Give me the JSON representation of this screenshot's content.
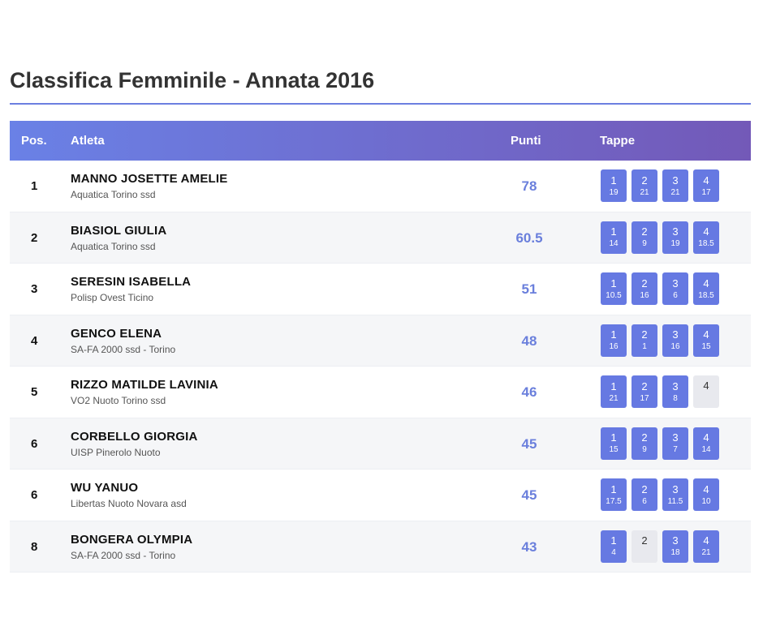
{
  "title": "Classifica Femminile - Annata 2016",
  "headers": {
    "pos": "Pos.",
    "athlete": "Atleta",
    "points": "Punti",
    "stages": "Tappe"
  },
  "rows": [
    {
      "pos": "1",
      "name": "MANNO JOSETTE AMELIE",
      "club": "Aquatica Torino ssd",
      "points": "78",
      "stages": [
        {
          "n": "1",
          "p": "19"
        },
        {
          "n": "2",
          "p": "21"
        },
        {
          "n": "3",
          "p": "21"
        },
        {
          "n": "4",
          "p": "17"
        }
      ]
    },
    {
      "pos": "2",
      "name": "BIASIOL GIULIA",
      "club": "Aquatica Torino ssd",
      "points": "60.5",
      "stages": [
        {
          "n": "1",
          "p": "14"
        },
        {
          "n": "2",
          "p": "9"
        },
        {
          "n": "3",
          "p": "19"
        },
        {
          "n": "4",
          "p": "18.5"
        }
      ]
    },
    {
      "pos": "3",
      "name": "SERESIN ISABELLA",
      "club": "Polisp Ovest Ticino",
      "points": "51",
      "stages": [
        {
          "n": "1",
          "p": "10.5"
        },
        {
          "n": "2",
          "p": "16"
        },
        {
          "n": "3",
          "p": "6"
        },
        {
          "n": "4",
          "p": "18.5"
        }
      ]
    },
    {
      "pos": "4",
      "name": "GENCO ELENA",
      "club": "SA-FA 2000 ssd - Torino",
      "points": "48",
      "stages": [
        {
          "n": "1",
          "p": "16"
        },
        {
          "n": "2",
          "p": "1"
        },
        {
          "n": "3",
          "p": "16"
        },
        {
          "n": "4",
          "p": "15"
        }
      ]
    },
    {
      "pos": "5",
      "name": "RIZZO MATILDE LAVINIA",
      "club": "VO2 Nuoto Torino ssd",
      "points": "46",
      "stages": [
        {
          "n": "1",
          "p": "21"
        },
        {
          "n": "2",
          "p": "17"
        },
        {
          "n": "3",
          "p": "8"
        },
        {
          "n": "4",
          "p": ""
        }
      ]
    },
    {
      "pos": "6",
      "name": "CORBELLO GIORGIA",
      "club": "UISP Pinerolo Nuoto",
      "points": "45",
      "stages": [
        {
          "n": "1",
          "p": "15"
        },
        {
          "n": "2",
          "p": "9"
        },
        {
          "n": "3",
          "p": "7"
        },
        {
          "n": "4",
          "p": "14"
        }
      ]
    },
    {
      "pos": "6",
      "name": "WU YANUO",
      "club": "Libertas Nuoto Novara asd",
      "points": "45",
      "stages": [
        {
          "n": "1",
          "p": "17.5"
        },
        {
          "n": "2",
          "p": "6"
        },
        {
          "n": "3",
          "p": "11.5"
        },
        {
          "n": "4",
          "p": "10"
        }
      ]
    },
    {
      "pos": "8",
      "name": "BONGERA OLYMPIA",
      "club": "SA-FA 2000 ssd - Torino",
      "points": "43",
      "stages": [
        {
          "n": "1",
          "p": "4"
        },
        {
          "n": "2",
          "p": ""
        },
        {
          "n": "3",
          "p": "18"
        },
        {
          "n": "4",
          "p": "21"
        }
      ]
    }
  ],
  "colors": {
    "accent": "#6679e2",
    "header_start": "#6a81e6",
    "header_end": "#7359b8",
    "missing": "#e8e9ee"
  }
}
